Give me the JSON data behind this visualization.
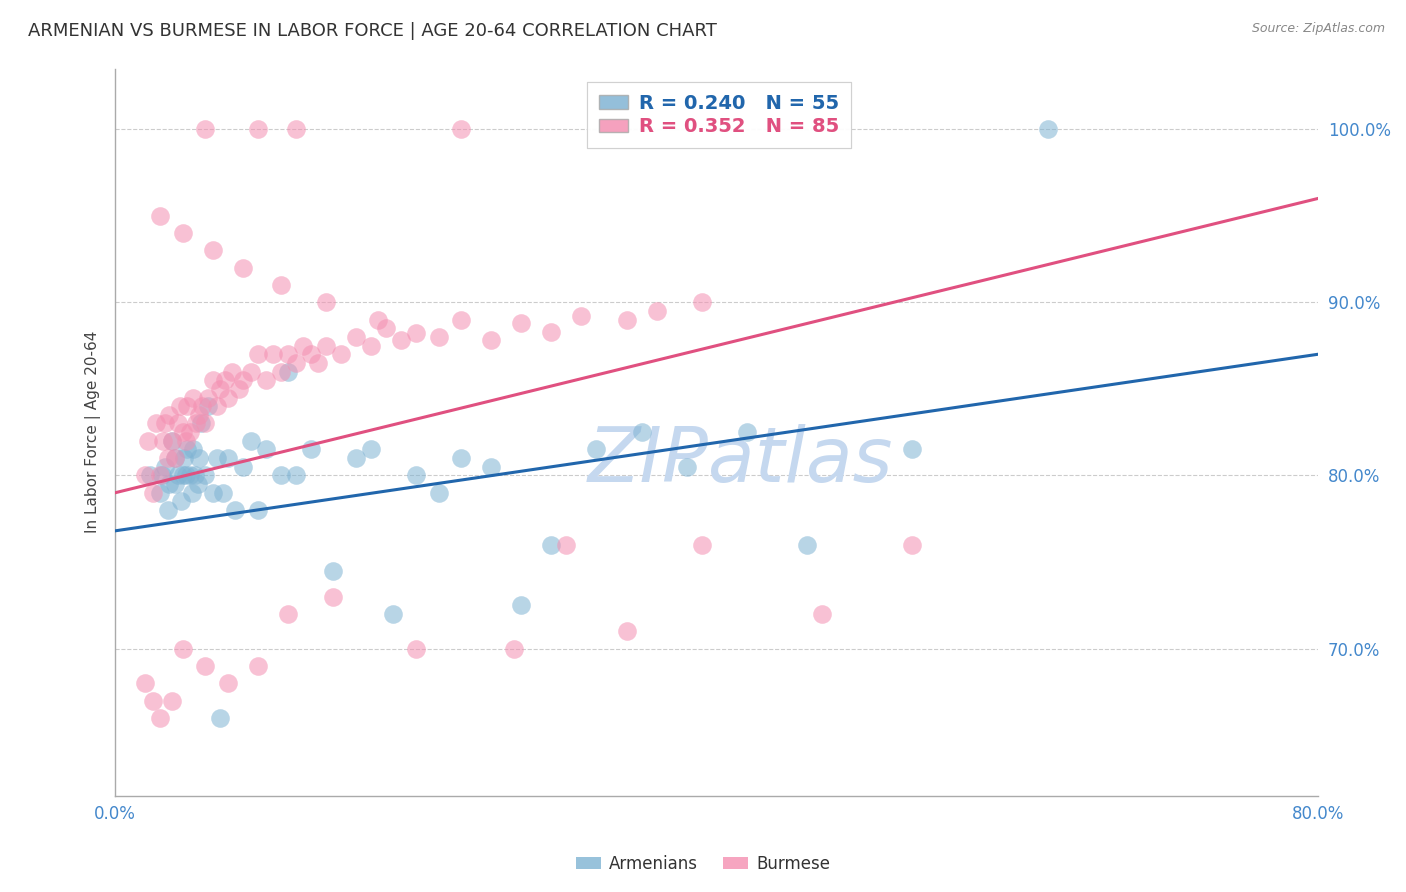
{
  "title": "ARMENIAN VS BURMESE IN LABOR FORCE | AGE 20-64 CORRELATION CHART",
  "source": "Source: ZipAtlas.com",
  "ylabel": "In Labor Force | Age 20-64",
  "ytick_labels": [
    "70.0%",
    "80.0%",
    "90.0%",
    "100.0%"
  ],
  "ytick_values": [
    0.7,
    0.8,
    0.9,
    1.0
  ],
  "xlim": [
    0.0,
    0.8
  ],
  "ylim": [
    0.615,
    1.035
  ],
  "blue_color": "#7fb3d3",
  "pink_color": "#f48fb1",
  "blue_line_color": "#2166ac",
  "pink_line_color": "#e05080",
  "watermark": "ZIPatlas",
  "armenians_x": [
    0.023,
    0.03,
    0.031,
    0.033,
    0.035,
    0.036,
    0.038,
    0.04,
    0.04,
    0.042,
    0.044,
    0.045,
    0.046,
    0.047,
    0.048,
    0.05,
    0.051,
    0.052,
    0.053,
    0.055,
    0.056,
    0.057,
    0.06,
    0.062,
    0.065,
    0.068,
    0.07,
    0.072,
    0.075,
    0.08,
    0.085,
    0.09,
    0.095,
    0.1,
    0.11,
    0.115,
    0.12,
    0.13,
    0.145,
    0.16,
    0.17,
    0.185,
    0.2,
    0.215,
    0.23,
    0.25,
    0.27,
    0.29,
    0.32,
    0.35,
    0.38,
    0.42,
    0.46,
    0.53,
    0.62
  ],
  "armenians_y": [
    0.8,
    0.79,
    0.8,
    0.805,
    0.78,
    0.795,
    0.82,
    0.795,
    0.81,
    0.8,
    0.785,
    0.8,
    0.81,
    0.8,
    0.815,
    0.8,
    0.79,
    0.815,
    0.8,
    0.795,
    0.81,
    0.83,
    0.8,
    0.84,
    0.79,
    0.81,
    0.66,
    0.79,
    0.81,
    0.78,
    0.805,
    0.82,
    0.78,
    0.815,
    0.8,
    0.86,
    0.8,
    0.815,
    0.745,
    0.81,
    0.815,
    0.72,
    0.8,
    0.79,
    0.81,
    0.805,
    0.725,
    0.76,
    0.815,
    0.825,
    0.805,
    0.825,
    0.76,
    0.815,
    1.0
  ],
  "burmese_x": [
    0.02,
    0.022,
    0.025,
    0.027,
    0.03,
    0.032,
    0.033,
    0.035,
    0.036,
    0.038,
    0.04,
    0.042,
    0.043,
    0.045,
    0.047,
    0.048,
    0.05,
    0.052,
    0.054,
    0.056,
    0.058,
    0.06,
    0.062,
    0.065,
    0.068,
    0.07,
    0.073,
    0.075,
    0.078,
    0.082,
    0.085,
    0.09,
    0.095,
    0.1,
    0.105,
    0.11,
    0.115,
    0.12,
    0.125,
    0.13,
    0.135,
    0.14,
    0.15,
    0.16,
    0.17,
    0.18,
    0.19,
    0.2,
    0.215,
    0.23,
    0.25,
    0.27,
    0.29,
    0.31,
    0.34,
    0.36,
    0.39,
    0.03,
    0.045,
    0.065,
    0.085,
    0.11,
    0.14,
    0.175,
    0.06,
    0.095,
    0.12,
    0.23,
    0.3,
    0.39,
    0.02,
    0.025,
    0.03,
    0.038,
    0.045,
    0.06,
    0.075,
    0.095,
    0.115,
    0.145,
    0.2,
    0.265,
    0.34,
    0.47,
    0.53
  ],
  "burmese_y": [
    0.8,
    0.82,
    0.79,
    0.83,
    0.8,
    0.82,
    0.83,
    0.81,
    0.835,
    0.82,
    0.81,
    0.83,
    0.84,
    0.825,
    0.82,
    0.84,
    0.825,
    0.845,
    0.83,
    0.835,
    0.84,
    0.83,
    0.845,
    0.855,
    0.84,
    0.85,
    0.855,
    0.845,
    0.86,
    0.85,
    0.855,
    0.86,
    0.87,
    0.855,
    0.87,
    0.86,
    0.87,
    0.865,
    0.875,
    0.87,
    0.865,
    0.875,
    0.87,
    0.88,
    0.875,
    0.885,
    0.878,
    0.882,
    0.88,
    0.89,
    0.878,
    0.888,
    0.883,
    0.892,
    0.89,
    0.895,
    0.9,
    0.95,
    0.94,
    0.93,
    0.92,
    0.91,
    0.9,
    0.89,
    1.0,
    1.0,
    1.0,
    1.0,
    0.76,
    0.76,
    0.68,
    0.67,
    0.66,
    0.67,
    0.7,
    0.69,
    0.68,
    0.69,
    0.72,
    0.73,
    0.7,
    0.7,
    0.71,
    0.72,
    0.76
  ],
  "blue_trend_x": [
    0.0,
    0.8
  ],
  "blue_trend_y": [
    0.768,
    0.87
  ],
  "pink_trend_x": [
    0.0,
    0.8
  ],
  "pink_trend_y": [
    0.79,
    0.96
  ],
  "background_color": "#ffffff",
  "grid_color": "#cccccc",
  "tick_color": "#4488cc",
  "title_fontsize": 13,
  "axis_label_fontsize": 11,
  "tick_fontsize": 12,
  "watermark_color": "#c5d8ef",
  "watermark_fontsize": 55,
  "marker_size": 180,
  "marker_alpha": 0.55,
  "marker_lw": 1.5
}
